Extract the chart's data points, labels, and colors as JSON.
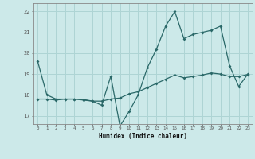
{
  "title": "",
  "xlabel": "Humidex (Indice chaleur)",
  "xlim": [
    -0.5,
    23.5
  ],
  "ylim": [
    16.6,
    22.4
  ],
  "yticks": [
    17,
    18,
    19,
    20,
    21,
    22
  ],
  "xticks": [
    0,
    1,
    2,
    3,
    4,
    5,
    6,
    7,
    8,
    9,
    10,
    11,
    12,
    13,
    14,
    15,
    16,
    17,
    18,
    19,
    20,
    21,
    22,
    23
  ],
  "line_color": "#2a6868",
  "bg_color": "#cce9e9",
  "grid_color": "#aed4d4",
  "series1_x": [
    0,
    1,
    2,
    3,
    4,
    5,
    6,
    7,
    8,
    9,
    10,
    11,
    12,
    13,
    14,
    15,
    16,
    17,
    18,
    19,
    20,
    21,
    22,
    23
  ],
  "series1_y": [
    19.6,
    18.0,
    17.8,
    17.8,
    17.8,
    17.75,
    17.7,
    17.5,
    18.9,
    16.5,
    17.2,
    18.0,
    19.3,
    20.2,
    21.3,
    22.0,
    20.7,
    20.9,
    21.0,
    21.1,
    21.3,
    19.4,
    18.4,
    19.0
  ],
  "series2_x": [
    0,
    1,
    2,
    3,
    4,
    5,
    6,
    7,
    8,
    9,
    10,
    11,
    12,
    13,
    14,
    15,
    16,
    17,
    18,
    19,
    20,
    21,
    22,
    23
  ],
  "series2_y": [
    17.8,
    17.8,
    17.75,
    17.8,
    17.8,
    17.78,
    17.7,
    17.7,
    17.8,
    17.85,
    18.05,
    18.15,
    18.35,
    18.55,
    18.75,
    18.95,
    18.82,
    18.88,
    18.95,
    19.05,
    19.0,
    18.88,
    18.88,
    18.98
  ]
}
